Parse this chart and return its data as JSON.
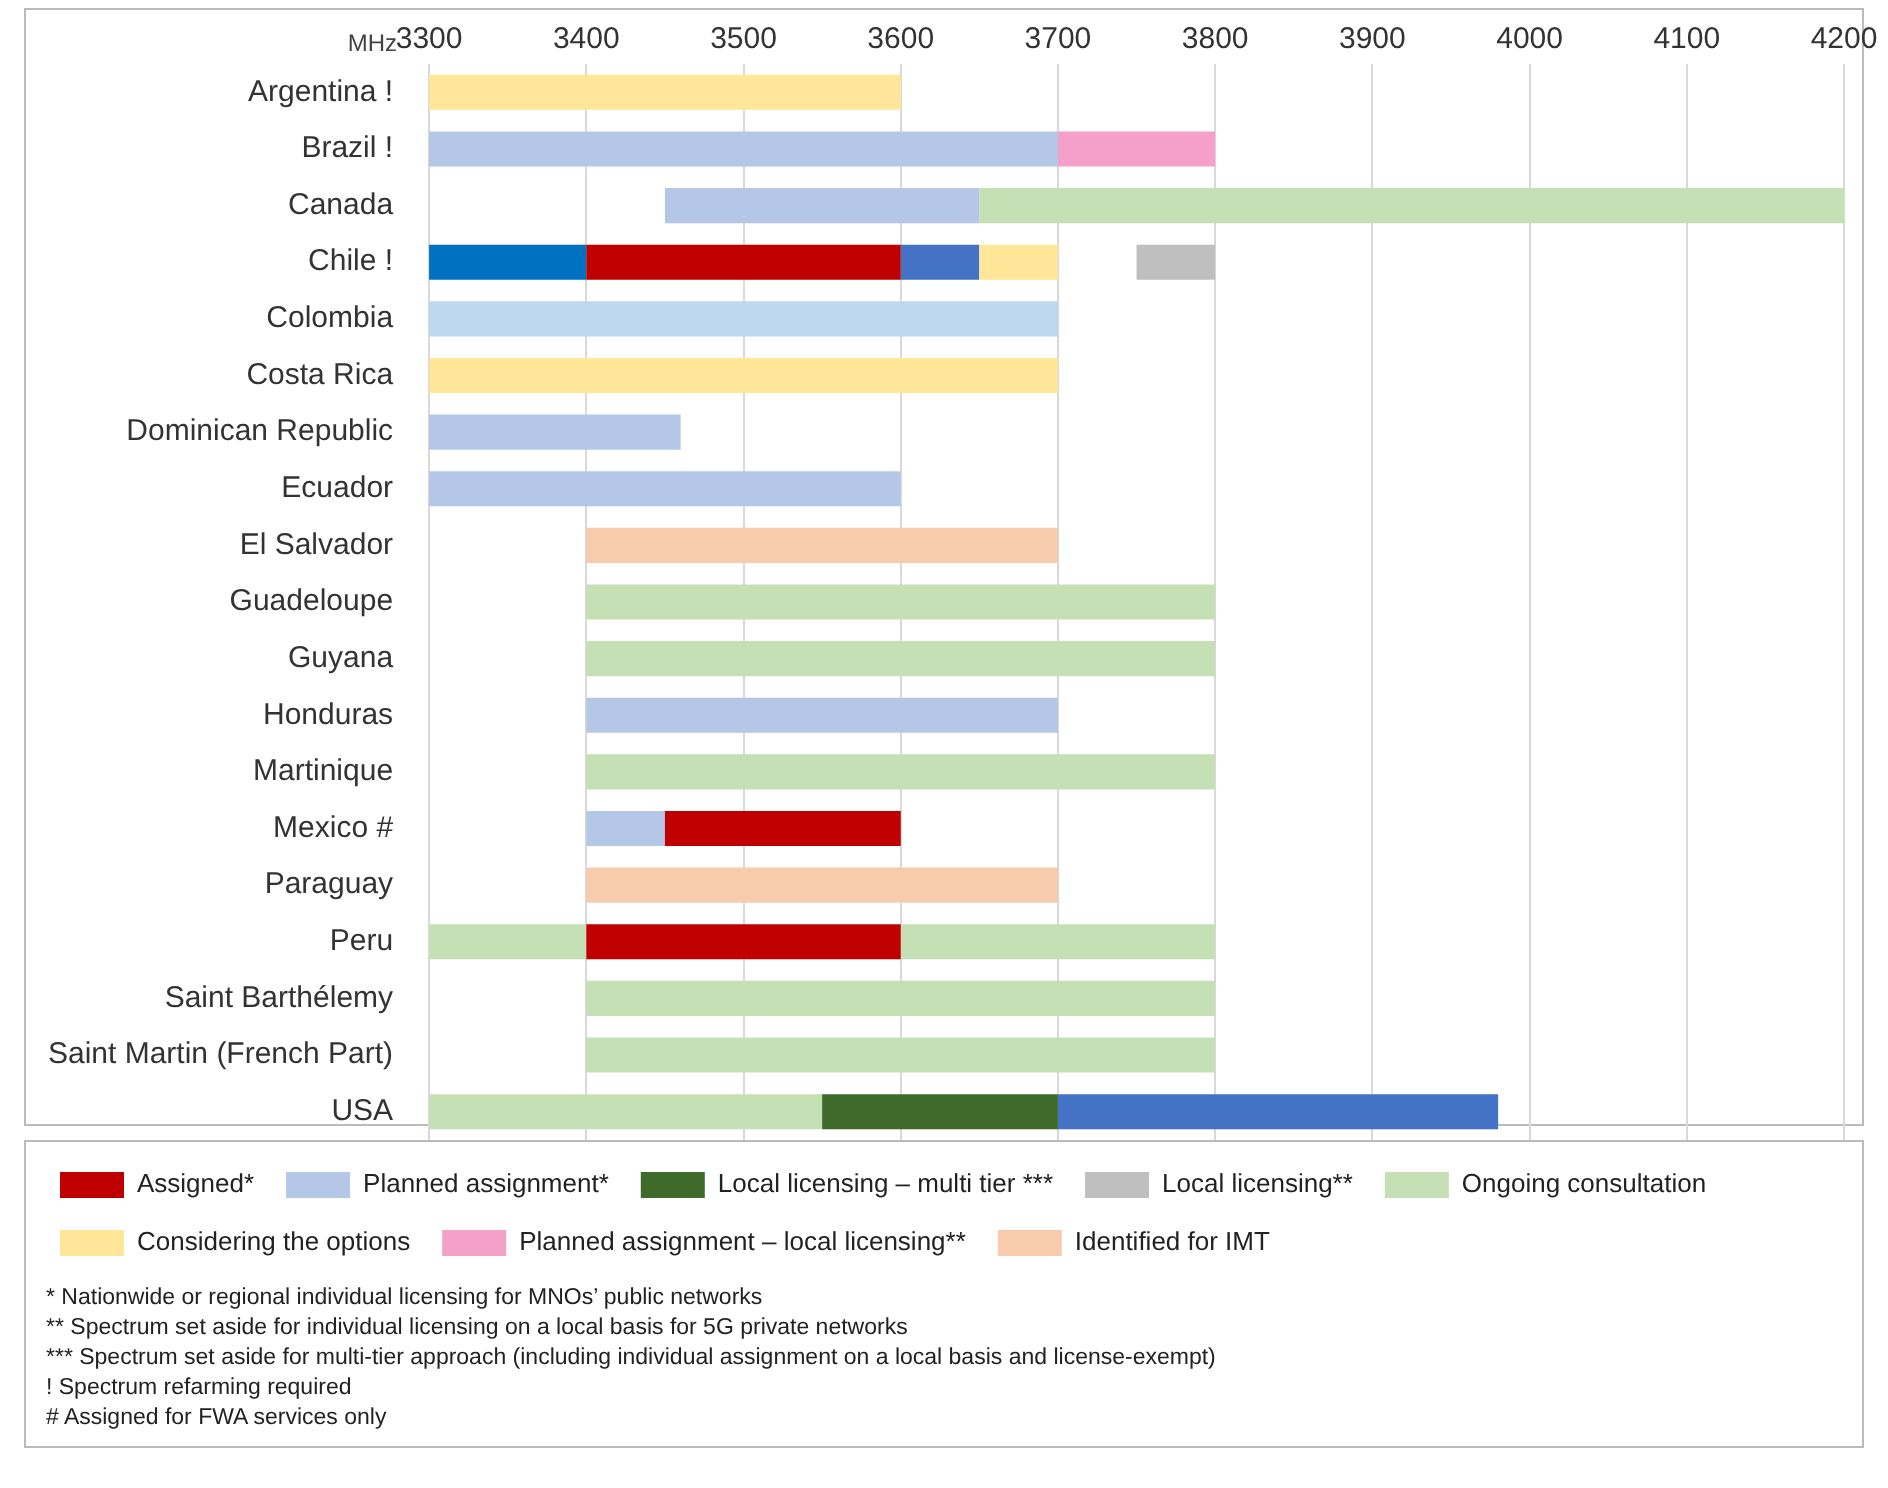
{
  "chart_data": {
    "type": "bar",
    "orientation": "horizontal",
    "xlabel": "MHz",
    "categories": [
      "Argentina !",
      "Brazil !",
      "Canada",
      "Chile !",
      "Colombia",
      "Costa Rica",
      "Dominican Republic",
      "Ecuador",
      "El Salvador",
      "Guadeloupe",
      "Guyana",
      "Honduras",
      "Martinique",
      "Mexico #",
      "Paraguay",
      "Peru",
      "Saint Barthélemy",
      "Saint Martin (French Part)",
      "USA"
    ],
    "series": [
      {
        "name": "Assigned*",
        "color": "#c00000",
        "base": [
          null,
          null,
          null,
          3400,
          null,
          null,
          null,
          null,
          null,
          null,
          null,
          null,
          null,
          3450,
          null,
          3400,
          null,
          null,
          null
        ],
        "values": [
          null,
          null,
          null,
          200,
          null,
          null,
          null,
          null,
          null,
          null,
          null,
          null,
          null,
          150,
          null,
          200,
          null,
          null,
          null
        ]
      },
      {
        "name": "Planned assignment*",
        "color": "#b4c7e7",
        "base": [
          null,
          3300,
          3450,
          null,
          null,
          null,
          3300,
          3300,
          null,
          null,
          null,
          3400,
          null,
          3400,
          null,
          null,
          null,
          null,
          null
        ],
        "values": [
          null,
          400,
          200,
          null,
          null,
          null,
          160,
          300,
          null,
          null,
          null,
          300,
          null,
          50,
          null,
          null,
          null,
          null,
          null
        ]
      },
      {
        "name": "Local licensing – multi tier ***",
        "color": "#3e6b2a",
        "base": [
          null,
          null,
          null,
          null,
          null,
          null,
          null,
          null,
          null,
          null,
          null,
          null,
          null,
          null,
          null,
          null,
          null,
          null,
          3550
        ],
        "values": [
          null,
          null,
          null,
          null,
          null,
          null,
          null,
          null,
          null,
          null,
          null,
          null,
          null,
          null,
          null,
          null,
          null,
          null,
          150
        ]
      },
      {
        "name": "Local licensing**",
        "color": "#bfbfbf",
        "base": [
          null,
          null,
          null,
          3750,
          null,
          null,
          null,
          null,
          null,
          null,
          null,
          null,
          null,
          null,
          null,
          null,
          null,
          null,
          null
        ],
        "values": [
          null,
          null,
          null,
          50,
          null,
          null,
          null,
          null,
          null,
          null,
          null,
          null,
          null,
          null,
          null,
          null,
          null,
          null,
          null
        ]
      },
      {
        "name": "Ongoing consultation",
        "color": "#c5e0b4",
        "base": [
          null,
          null,
          3650,
          null,
          null,
          null,
          null,
          null,
          null,
          3400,
          3400,
          null,
          3400,
          null,
          null,
          3300,
          3400,
          3400,
          3300
        ],
        "values": [
          null,
          null,
          550,
          null,
          null,
          null,
          null,
          null,
          null,
          400,
          400,
          null,
          400,
          null,
          null,
          100,
          400,
          400,
          250
        ]
      },
      {
        "name": "Considering the options",
        "color": "#ffe699",
        "base": [
          3300,
          null,
          null,
          3650,
          null,
          3300,
          null,
          null,
          null,
          null,
          null,
          null,
          null,
          null,
          null,
          null,
          null,
          null,
          null
        ],
        "values": [
          300,
          null,
          null,
          50,
          null,
          400,
          null,
          null,
          null,
          null,
          null,
          null,
          null,
          null,
          null,
          null,
          null,
          null,
          null
        ]
      },
      {
        "name": "Planned assignment – local licensing**",
        "color": "#f4a0c8",
        "base": [
          null,
          3700,
          null,
          null,
          null,
          null,
          null,
          null,
          null,
          null,
          null,
          null,
          null,
          null,
          null,
          null,
          null,
          null,
          null
        ],
        "values": [
          null,
          100,
          null,
          null,
          null,
          null,
          null,
          null,
          null,
          null,
          null,
          null,
          null,
          null,
          null,
          null,
          null,
          null,
          null
        ]
      },
      {
        "name": "Identified for IMT",
        "color": "#f8cbad",
        "base": [
          null,
          null,
          null,
          null,
          null,
          null,
          null,
          null,
          3400,
          null,
          null,
          null,
          null,
          null,
          3400,
          null,
          null,
          null,
          null
        ],
        "values": [
          null,
          null,
          null,
          null,
          null,
          null,
          null,
          null,
          300,
          null,
          null,
          null,
          null,
          null,
          300,
          null,
          null,
          null,
          null
        ]
      },
      {
        "color": "#c5e0b4",
        "base": [
          null,
          null,
          null,
          null,
          null,
          null,
          null,
          null,
          null,
          null,
          null,
          null,
          null,
          null,
          null,
          3600,
          null,
          null,
          null
        ],
        "values": [
          null,
          null,
          null,
          null,
          null,
          null,
          null,
          null,
          null,
          null,
          null,
          null,
          null,
          null,
          null,
          200,
          null,
          null,
          null
        ]
      },
      {
        "color": "#0070c0",
        "base": [
          null,
          null,
          null,
          3300,
          null,
          null,
          null,
          null,
          null,
          null,
          null,
          null,
          null,
          null,
          null,
          null,
          null,
          null,
          null
        ],
        "values": [
          null,
          null,
          null,
          100,
          null,
          null,
          null,
          null,
          null,
          null,
          null,
          null,
          null,
          null,
          null,
          null,
          null,
          null,
          null
        ]
      },
      {
        "color": "#4472c4",
        "base": [
          null,
          null,
          null,
          3600,
          null,
          null,
          null,
          null,
          null,
          null,
          null,
          null,
          null,
          null,
          null,
          null,
          null,
          null,
          3700
        ],
        "values": [
          null,
          null,
          null,
          50,
          null,
          null,
          null,
          null,
          null,
          null,
          null,
          null,
          null,
          null,
          null,
          null,
          null,
          null,
          280
        ]
      },
      {
        "color": "#bdd7ee",
        "base": [
          null,
          null,
          null,
          null,
          3300,
          null,
          null,
          null,
          null,
          null,
          null,
          null,
          null,
          null,
          null,
          null,
          null,
          null,
          null
        ],
        "values": [
          null,
          null,
          null,
          null,
          400,
          null,
          null,
          null,
          null,
          null,
          null,
          null,
          null,
          null,
          null,
          null,
          null,
          null,
          null
        ]
      }
    ],
    "xlim": [
      3300,
      4200
    ],
    "xticks": [
      3300,
      3400,
      3500,
      3600,
      3700,
      3800,
      3900,
      4000,
      4100,
      4200
    ],
    "grid": "x",
    "legend": "bottom",
    "annotations": [
      "* Nationwide or regional individual licensing for MNOs’ public networks",
      "** Spectrum set aside for individual licensing on a local basis for 5G private networks",
      "*** Spectrum set aside for multi-tier approach (including individual assignment on a local basis and license-exempt)",
      "! Spectrum refarming required",
      "# Assigned for FWA services only"
    ]
  }
}
